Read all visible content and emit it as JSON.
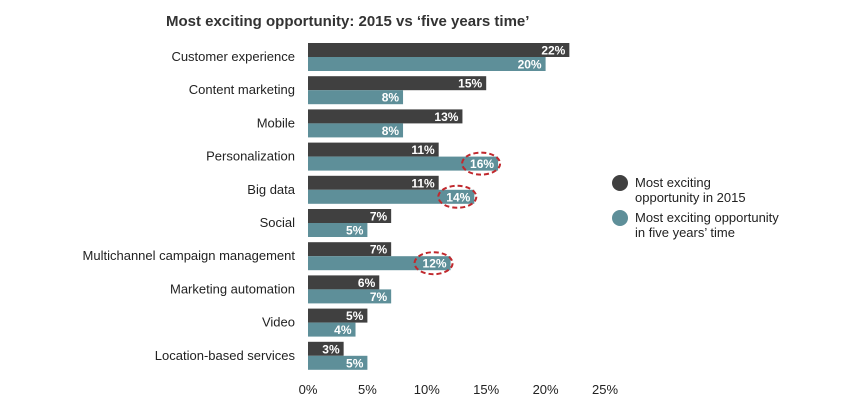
{
  "chart_data": {
    "type": "bar",
    "orientation": "horizontal",
    "title": "Most exciting opportunity: 2015 vs ‘five years time’",
    "categories": [
      "Customer experience",
      "Content marketing",
      "Mobile",
      "Personalization",
      "Big data",
      "Social",
      "Multichannel campaign management",
      "Marketing automation",
      "Video",
      "Location-based services"
    ],
    "series": [
      {
        "name": "Most exciting opportunity in 2015",
        "legend_lines": [
          "Most exciting",
          "opportunity in 2015"
        ],
        "color": "#404040",
        "values": [
          22,
          15,
          13,
          11,
          11,
          7,
          7,
          6,
          5,
          3
        ]
      },
      {
        "name": "Most exciting opportunity in five years’ time",
        "legend_lines": [
          "Most exciting opportunity",
          "in five years’ time"
        ],
        "color": "#5E8F99",
        "values": [
          20,
          8,
          8,
          16,
          14,
          5,
          12,
          7,
          4,
          5
        ]
      }
    ],
    "value_suffix": "%",
    "xlim": [
      0,
      25
    ],
    "xticks": [
      0,
      5,
      10,
      15,
      20,
      25
    ],
    "xtick_labels": [
      "0%",
      "5%",
      "10%",
      "15%",
      "20%",
      "25%"
    ],
    "grid": false,
    "legend_position": "right",
    "highlights": [
      {
        "category": "Personalization",
        "series": 1
      },
      {
        "category": "Big data",
        "series": 1
      },
      {
        "category": "Multichannel campaign management",
        "series": 1
      }
    ],
    "highlight_color": "#C0282D"
  }
}
